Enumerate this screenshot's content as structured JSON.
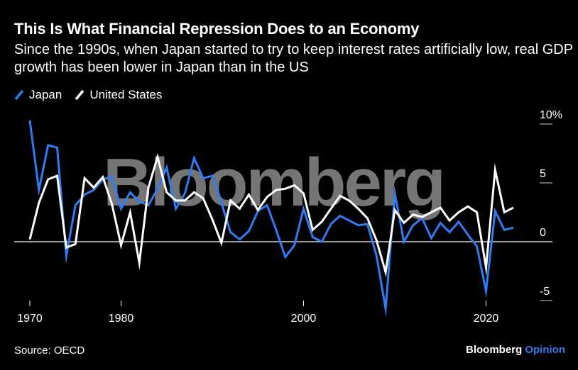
{
  "title": "This Is What Financial Repression Does to an Economy",
  "subtitle": "Since the 1990s, when Japan started to try to keep interest rates artificially low, real GDP growth has been lower in Japan than in the US",
  "source": "Source: OECD",
  "brand": {
    "name": "Bloomberg",
    "suffix": "Opinion"
  },
  "watermark": "Bloomberg",
  "colors": {
    "japan": "#2e7cf6",
    "us": "#ffffff",
    "background": "#000000",
    "watermark": "#8a8a8a"
  },
  "chart_data": {
    "type": "line",
    "xlim": [
      1970,
      2023
    ],
    "ylim": [
      -5,
      10
    ],
    "y_ticks": [
      -5,
      0,
      5,
      10
    ],
    "y_tick_labels": [
      "-5",
      "0",
      "5",
      "10%"
    ],
    "x_ticks": [
      1970,
      1980,
      2000,
      2020
    ],
    "x_tick_labels": [
      "1970",
      "1980",
      "2000",
      "2020"
    ],
    "grid": "horizontal",
    "legend_position": "top-left",
    "x": [
      1970,
      1971,
      1972,
      1973,
      1974,
      1975,
      1976,
      1977,
      1978,
      1979,
      1980,
      1981,
      1982,
      1983,
      1984,
      1985,
      1986,
      1987,
      1988,
      1989,
      1990,
      1991,
      1992,
      1993,
      1994,
      1995,
      1996,
      1997,
      1998,
      1999,
      2000,
      2001,
      2002,
      2003,
      2004,
      2005,
      2006,
      2007,
      2008,
      2009,
      2010,
      2011,
      2012,
      2013,
      2014,
      2015,
      2016,
      2017,
      2018,
      2019,
      2020,
      2021,
      2022,
      2023
    ],
    "series": [
      {
        "name": "Japan",
        "color": "#2e7cf6",
        "values": [
          10.3,
          4.4,
          8.2,
          8.0,
          -1.2,
          3.1,
          4.0,
          4.4,
          5.3,
          5.5,
          2.8,
          4.2,
          3.4,
          3.1,
          4.5,
          6.3,
          2.8,
          4.1,
          7.1,
          5.4,
          5.6,
          3.3,
          0.8,
          0.2,
          0.9,
          2.6,
          3.1,
          1.0,
          -1.3,
          -0.3,
          2.8,
          0.4,
          0.0,
          1.5,
          2.2,
          1.8,
          1.4,
          1.5,
          -1.2,
          -5.7,
          4.1,
          0.0,
          1.4,
          2.0,
          0.3,
          1.6,
          0.8,
          1.7,
          0.6,
          -0.4,
          -4.2,
          2.6,
          1.0,
          1.2
        ]
      },
      {
        "name": "United States",
        "color": "#ffffff",
        "values": [
          0.2,
          3.3,
          5.3,
          5.6,
          -0.5,
          -0.2,
          5.4,
          4.6,
          5.5,
          3.2,
          -0.3,
          2.5,
          -1.8,
          4.6,
          7.2,
          4.2,
          3.5,
          3.5,
          4.2,
          3.7,
          1.9,
          -0.1,
          3.5,
          2.8,
          4.0,
          2.7,
          3.8,
          4.4,
          4.5,
          4.8,
          4.1,
          1.0,
          1.7,
          2.8,
          3.9,
          3.5,
          2.8,
          2.0,
          0.1,
          -2.6,
          2.7,
          1.6,
          2.3,
          2.1,
          2.5,
          2.9,
          1.8,
          2.5,
          3.0,
          2.5,
          -2.2,
          6.1,
          2.5,
          2.9
        ]
      }
    ]
  }
}
